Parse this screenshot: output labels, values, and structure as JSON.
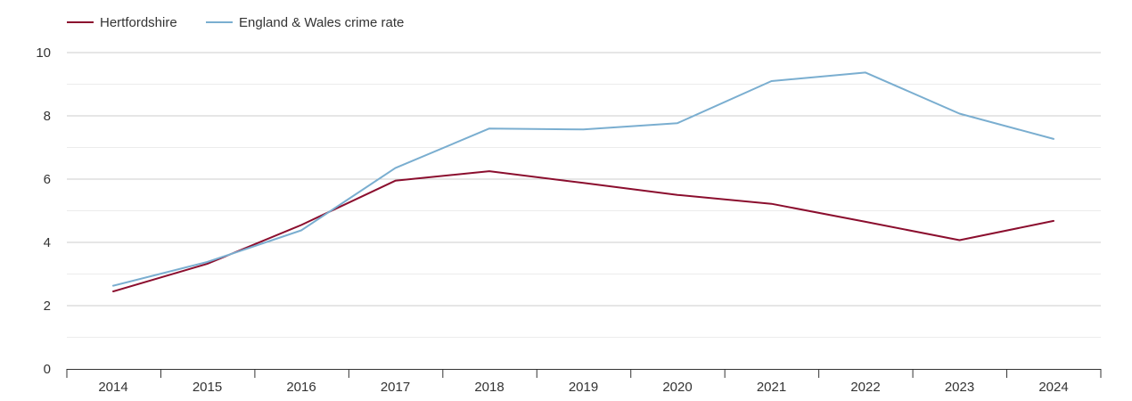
{
  "chart_data": {
    "type": "line",
    "title": "",
    "xlabel": "",
    "ylabel": "",
    "x": [
      2014,
      2015,
      2016,
      2017,
      2018,
      2019,
      2020,
      2021,
      2022,
      2023,
      2024
    ],
    "ylim": [
      0,
      10
    ],
    "y_ticks": [
      0,
      2,
      4,
      6,
      8,
      10
    ],
    "grid": true,
    "legend_position": "top-left",
    "series": [
      {
        "name": "Hertfordshire",
        "color": "#8b0e2e",
        "values": [
          2.45,
          3.32,
          4.55,
          5.95,
          6.25,
          5.88,
          5.5,
          5.22,
          4.65,
          4.07,
          4.68
        ]
      },
      {
        "name": "England & Wales crime rate",
        "color": "#7aaed0",
        "values": [
          2.63,
          3.38,
          4.38,
          6.35,
          7.6,
          7.57,
          7.77,
          9.1,
          9.37,
          8.07,
          7.27
        ]
      }
    ]
  }
}
